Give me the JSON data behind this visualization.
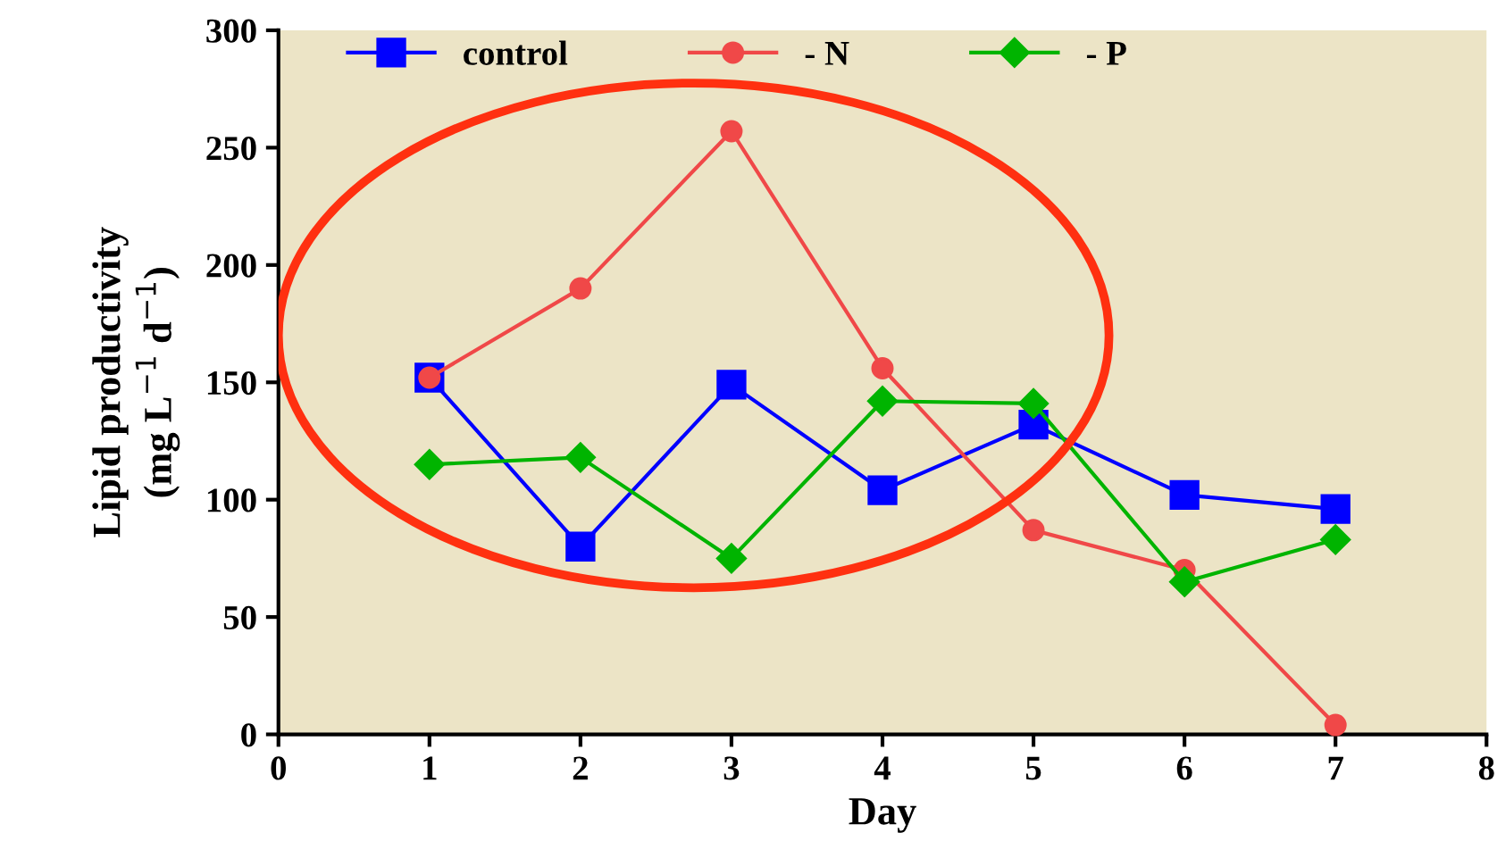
{
  "chart_data": {
    "type": "line",
    "xlabel": "Day",
    "ylabel": "Lipid productivity\n(mg L$^{−1}$ d$^{−1}$)",
    "x": [
      1,
      2,
      3,
      4,
      5,
      6,
      7
    ],
    "series": [
      {
        "name": "control",
        "color": "#0000ff",
        "marker": "square",
        "values": [
          152,
          80,
          149,
          104,
          132,
          102,
          96
        ]
      },
      {
        "name": "- N",
        "color": "#f04848",
        "marker": "circle",
        "values": [
          152,
          190,
          257,
          156,
          87,
          70,
          4
        ]
      },
      {
        "name": "- P",
        "color": "#00b400",
        "marker": "diamond",
        "values": [
          115,
          118,
          75,
          142,
          141,
          65,
          83
        ]
      }
    ],
    "xlim": [
      0,
      8
    ],
    "xticks": [
      0,
      1,
      2,
      3,
      4,
      5,
      6,
      7,
      8
    ],
    "ylim": [
      0,
      300
    ],
    "yticks": [
      0,
      50,
      100,
      150,
      200,
      250,
      300
    ],
    "legend": "top",
    "grid": false,
    "line_style": "solid"
  }
}
